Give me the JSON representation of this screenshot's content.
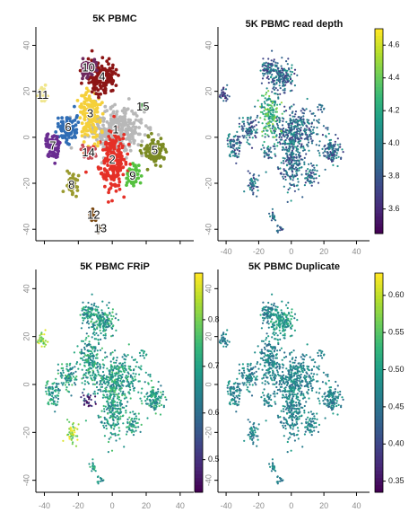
{
  "colors": {
    "viridis": [
      "#440154",
      "#482878",
      "#3e4989",
      "#31688e",
      "#26828e",
      "#1f9e89",
      "#35b779",
      "#6ece58",
      "#b5de2b",
      "#fde725"
    ],
    "clusters": {
      "1": "#b8b8b8",
      "2": "#e53027",
      "3": "#f5d03a",
      "4": "#8c1515",
      "5": "#7b8a23",
      "6": "#2f6db5",
      "7": "#6a2c91",
      "8": "#9a9a2f",
      "9": "#55c13f",
      "10": "#6e2a5f",
      "11": "#f0e68c",
      "12": "#7b4a13",
      "13": "#7a6a52",
      "14": "#c74b55",
      "15": "#2e8b2e"
    }
  },
  "chart_data": [
    {
      "type": "scatter",
      "title": "5K PBMC",
      "color_mode": "cluster",
      "xlim": [
        -45,
        48
      ],
      "ylim": [
        -45,
        48
      ],
      "xticks": [
        -40,
        -20,
        0,
        20,
        40
      ],
      "yticks": [
        40,
        20,
        0,
        -20,
        -40
      ],
      "show_xticks": false,
      "cluster_labels": [
        {
          "label": "1",
          "x": 2,
          "y": 3
        },
        {
          "label": "2",
          "x": 0,
          "y": -10
        },
        {
          "label": "3",
          "x": -13,
          "y": 10
        },
        {
          "label": "4",
          "x": -6,
          "y": 26
        },
        {
          "label": "5",
          "x": 25,
          "y": -6
        },
        {
          "label": "6",
          "x": -26,
          "y": 4
        },
        {
          "label": "7",
          "x": -35,
          "y": -4
        },
        {
          "label": "8",
          "x": -24,
          "y": -21
        },
        {
          "label": "9",
          "x": 12,
          "y": -17
        },
        {
          "label": "10",
          "x": -14,
          "y": 30
        },
        {
          "label": "11",
          "x": -41,
          "y": 18
        },
        {
          "label": "12",
          "x": -11,
          "y": -34
        },
        {
          "label": "13",
          "x": -7,
          "y": -40
        },
        {
          "label": "14",
          "x": -14,
          "y": -7
        },
        {
          "label": "15",
          "x": 18,
          "y": 13
        }
      ]
    },
    {
      "type": "scatter",
      "title": "5K PBMC read depth",
      "color_mode": "continuous",
      "xlim": [
        -45,
        48
      ],
      "ylim": [
        -45,
        48
      ],
      "xticks": [
        -40,
        -20,
        0,
        20,
        40
      ],
      "yticks": [
        40,
        20,
        0,
        -20,
        -40
      ],
      "show_xticks": true,
      "colorbar": {
        "min": 3.45,
        "max": 4.7,
        "ticks": [
          "4.6",
          "4.4",
          "4.2",
          "4.0",
          "3.8",
          "3.6"
        ],
        "tick_values": [
          4.6,
          4.4,
          4.2,
          4.0,
          3.8,
          3.6
        ]
      }
    },
    {
      "type": "scatter",
      "title": "5K PBMC FRiP",
      "color_mode": "continuous",
      "xlim": [
        -45,
        48
      ],
      "ylim": [
        -45,
        48
      ],
      "xticks": [
        -40,
        -20,
        0,
        20,
        40
      ],
      "yticks": [
        40,
        20,
        0,
        -20,
        -40
      ],
      "show_xticks": true,
      "colorbar": {
        "min": 0.43,
        "max": 0.9,
        "ticks": [
          "0.8",
          "0.7",
          "0.6",
          "0.5"
        ],
        "tick_values": [
          0.8,
          0.7,
          0.6,
          0.5
        ]
      }
    },
    {
      "type": "scatter",
      "title": "5K PBMC Duplicate",
      "color_mode": "continuous",
      "xlim": [
        -45,
        48
      ],
      "ylim": [
        -45,
        48
      ],
      "xticks": [
        -40,
        -20,
        0,
        20,
        40
      ],
      "yticks": [
        40,
        20,
        0,
        -20,
        -40
      ],
      "show_xticks": true,
      "colorbar": {
        "min": 0.335,
        "max": 0.63,
        "ticks": [
          "0.60",
          "0.55",
          "0.50",
          "0.45",
          "0.40",
          "0.35"
        ],
        "tick_values": [
          0.6,
          0.55,
          0.5,
          0.45,
          0.4,
          0.35
        ]
      }
    }
  ],
  "embedding_clusters": [
    {
      "id": "1",
      "cx": 2,
      "cy": 3,
      "rx": 14,
      "ry": 9,
      "n": 330
    },
    {
      "id": "2",
      "cx": 0,
      "cy": -10,
      "rx": 7,
      "ry": 11,
      "n": 230
    },
    {
      "id": "3",
      "cx": -13,
      "cy": 10,
      "rx": 6,
      "ry": 9,
      "n": 170
    },
    {
      "id": "4",
      "cx": -6,
      "cy": 26,
      "rx": 7,
      "ry": 6,
      "n": 170
    },
    {
      "id": "5",
      "cx": 25,
      "cy": -6,
      "rx": 6,
      "ry": 5,
      "n": 110
    },
    {
      "id": "6",
      "cx": -26,
      "cy": 4,
      "rx": 5,
      "ry": 5,
      "n": 90
    },
    {
      "id": "7",
      "cx": -35,
      "cy": -4,
      "rx": 4,
      "ry": 5,
      "n": 70
    },
    {
      "id": "8",
      "cx": -24,
      "cy": -21,
      "rx": 3,
      "ry": 4,
      "n": 45
    },
    {
      "id": "9",
      "cx": 12,
      "cy": -17,
      "rx": 3,
      "ry": 5,
      "n": 55
    },
    {
      "id": "10",
      "cx": -14,
      "cy": 30,
      "rx": 4,
      "ry": 4,
      "n": 70
    },
    {
      "id": "11",
      "cx": -41,
      "cy": 18,
      "rx": 3,
      "ry": 3,
      "n": 30
    },
    {
      "id": "12",
      "cx": -11,
      "cy": -34,
      "rx": 2,
      "ry": 2,
      "n": 18
    },
    {
      "id": "13",
      "cx": -7,
      "cy": -40,
      "rx": 2,
      "ry": 2,
      "n": 14
    },
    {
      "id": "14",
      "cx": -14,
      "cy": -7,
      "rx": 3,
      "ry": 3,
      "n": 30
    },
    {
      "id": "15",
      "cx": 18,
      "cy": 13,
      "rx": 2,
      "ry": 2,
      "n": 10
    }
  ]
}
